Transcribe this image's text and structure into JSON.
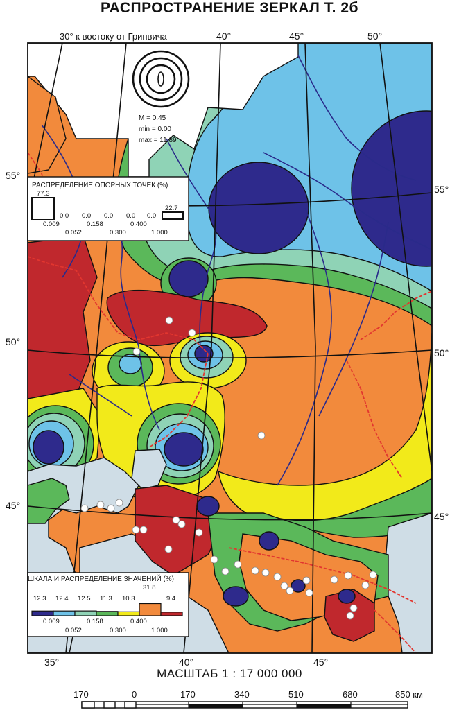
{
  "title": "РАСПРОСТРАНЕНИЕ ЗЕРКАЛ Т. 2б",
  "meridian_note": "30° к востоку от Гринвича",
  "top_lon": [
    "40°",
    "45°",
    "50°"
  ],
  "bottom_lon": [
    "35°",
    "40°",
    "45°"
  ],
  "left_lat": [
    "55°",
    "50°",
    "45°"
  ],
  "right_lat": [
    "55°",
    "50°",
    "45°"
  ],
  "rose": {
    "m": "M = 0.45",
    "min": "min = 0.00",
    "max": "max = 11.89"
  },
  "ref_legend": {
    "title": "РАСПРЕДЕЛЕНИЕ ОПОРНЫХ ТОЧЕК (%)",
    "pcts": [
      "77.3",
      "0.0",
      "0.0",
      "0.0",
      "0.0",
      "0.0",
      "22.7"
    ],
    "bounds_top": [
      "0.009",
      "0.158",
      "0.400"
    ],
    "bounds_bottom": [
      "0.052",
      "0.300",
      "1.000"
    ]
  },
  "val_legend": {
    "title": "ШКАЛА И РАСПРЕДЕЛЕНИЕ ЗНАЧЕНИЙ (%)",
    "pcts": [
      "12.3",
      "12.4",
      "12.5",
      "11.3",
      "10.3",
      "31.8",
      "9.4"
    ],
    "bounds_top": [
      "0.009",
      "0.158",
      "0.400"
    ],
    "bounds_bottom": [
      "0.052",
      "0.300",
      "1.000"
    ]
  },
  "class_colors": [
    "#2e2a8c",
    "#6ec2e8",
    "#8fd3b6",
    "#5bb85a",
    "#f2ea1a",
    "#f28a3c",
    "#c0282d"
  ],
  "scale": {
    "title": "МАСШТАБ 1 : 17 000 000",
    "ticks": [
      "170",
      "0",
      "170",
      "340",
      "510",
      "680",
      "850 км"
    ]
  }
}
